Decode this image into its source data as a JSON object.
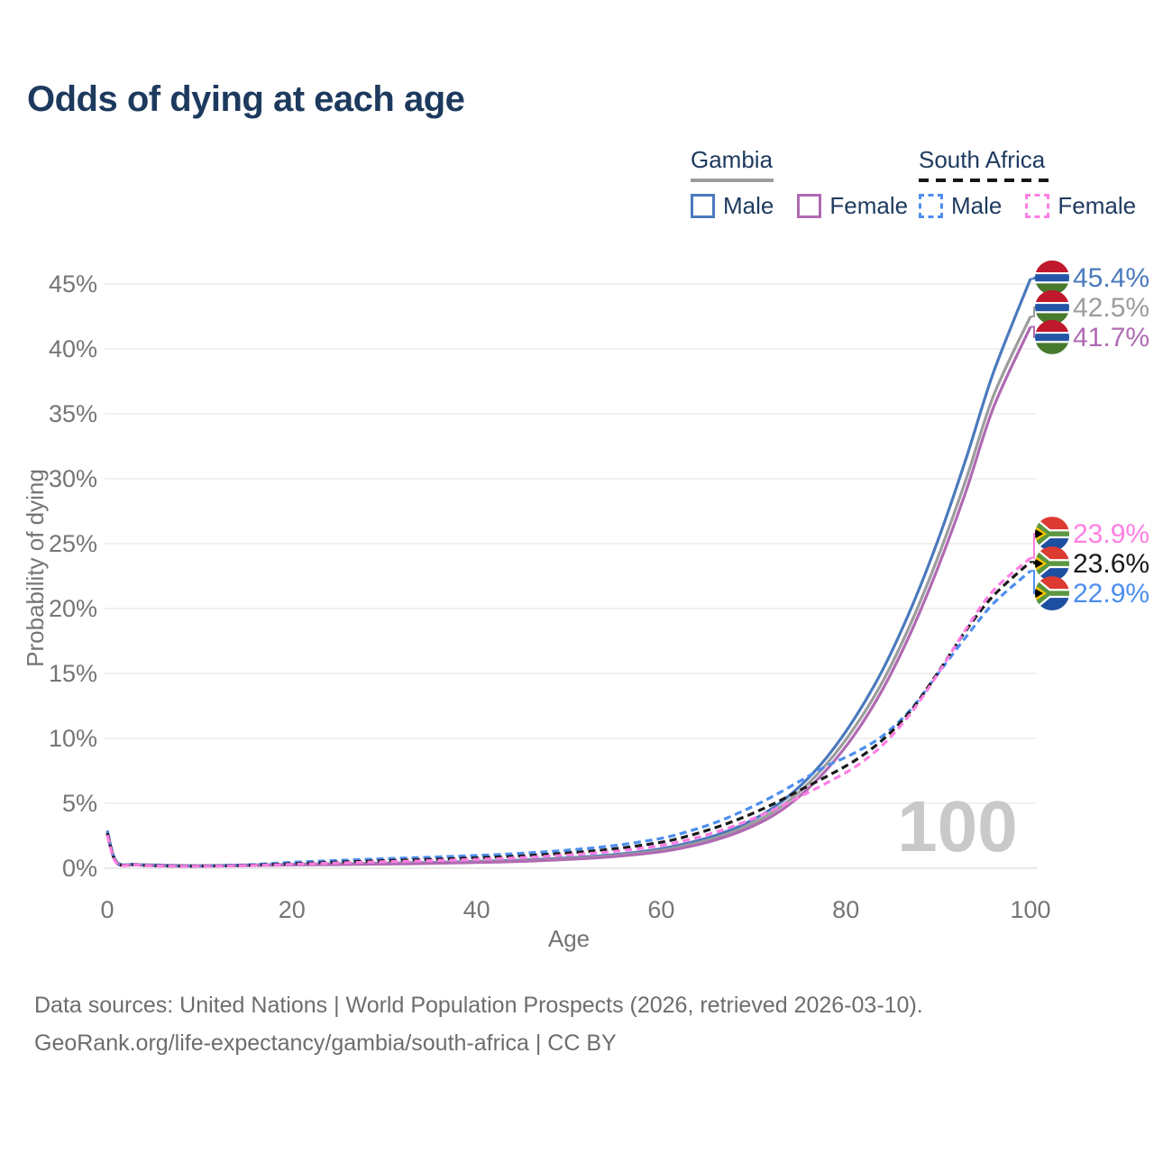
{
  "title": "Odds of dying at each age",
  "legend": {
    "groups": [
      {
        "label": "Gambia",
        "underline": {
          "style": "solid",
          "color": "#9c9c9c",
          "width": 92
        },
        "items": [
          {
            "label": "Male",
            "color": "#4a79bd",
            "line_style": "solid"
          },
          {
            "label": "Female",
            "color": "#b06ab3",
            "line_style": "solid"
          }
        ]
      },
      {
        "label": "South Africa",
        "underline": {
          "style": "dashed",
          "color": "#161616",
          "width": 144
        },
        "items": [
          {
            "label": "Male",
            "color": "#4d8ef0",
            "line_style": "dashed"
          },
          {
            "label": "Female",
            "color": "#ff7ee3",
            "line_style": "dashed"
          }
        ]
      }
    ]
  },
  "colors": {
    "title": "#1d3a5e",
    "axis_text": "#757575",
    "gridline": "#ebebeb",
    "zero_gridline": "#e0e0e0",
    "watermark": "#c9c9c9",
    "footer_text": "#6d6d6d"
  },
  "watermark": "100",
  "footer": {
    "line1": "Data sources: United Nations | World Population Prospects (2026, retrieved 2026-03-10).",
    "line2": "GeoRank.org/life-expectancy/gambia/south-africa | CC BY"
  },
  "chart_data": {
    "type": "line",
    "title": "Odds of dying at each age",
    "xlabel": "Age",
    "ylabel": "Probability of dying",
    "x_range": [
      0,
      100
    ],
    "y_range_pct": [
      0,
      45
    ],
    "x_ticks": [
      0,
      20,
      40,
      60,
      80,
      100
    ],
    "y_ticks_pct": [
      0,
      5,
      10,
      15,
      20,
      25,
      30,
      35,
      40,
      45
    ],
    "grid": true,
    "legend_position": "top-right",
    "ages": [
      0,
      1,
      3,
      5,
      10,
      15,
      20,
      25,
      30,
      35,
      40,
      45,
      50,
      55,
      60,
      63,
      66,
      69,
      72,
      75,
      78,
      81,
      84,
      87,
      90,
      93,
      96,
      100
    ],
    "series": [
      {
        "id": "gambia-male",
        "name": "Gambia Male",
        "color": "#4a79bd",
        "dash": null,
        "flag": "gambia",
        "end_value_pct": 45.4,
        "values_pct": [
          2.9,
          0.5,
          0.3,
          0.25,
          0.2,
          0.24,
          0.3,
          0.34,
          0.38,
          0.44,
          0.52,
          0.63,
          0.8,
          1.05,
          1.5,
          1.95,
          2.55,
          3.4,
          4.6,
          6.3,
          8.6,
          11.6,
          15.3,
          19.9,
          25.3,
          31.5,
          38.2,
          45.4
        ]
      },
      {
        "id": "gambia-both",
        "name": "Gambia (both sexes)",
        "color": "#9c9c9c",
        "dash": null,
        "flag": "gambia",
        "end_value_pct": 42.5,
        "values_pct": [
          2.75,
          0.46,
          0.28,
          0.22,
          0.18,
          0.22,
          0.27,
          0.31,
          0.35,
          0.4,
          0.48,
          0.58,
          0.74,
          0.97,
          1.38,
          1.8,
          2.36,
          3.15,
          4.28,
          5.9,
          8.1,
          10.9,
          14.4,
          18.8,
          24.0,
          29.9,
          36.4,
          42.5
        ]
      },
      {
        "id": "gambia-female",
        "name": "Gambia Female",
        "color": "#b06ab3",
        "dash": null,
        "flag": "gambia",
        "end_value_pct": 41.7,
        "values_pct": [
          2.6,
          0.42,
          0.26,
          0.2,
          0.17,
          0.2,
          0.25,
          0.28,
          0.32,
          0.37,
          0.44,
          0.53,
          0.68,
          0.9,
          1.27,
          1.66,
          2.2,
          2.95,
          4.0,
          5.55,
          7.65,
          10.35,
          13.8,
          18.1,
          23.2,
          29.0,
          35.5,
          41.7
        ]
      },
      {
        "id": "south-africa-male",
        "name": "South Africa Male",
        "color": "#4d8ef0",
        "dash": "8 5",
        "flag": "south-africa",
        "end_value_pct": 22.9,
        "values_pct": [
          2.8,
          0.45,
          0.3,
          0.2,
          0.17,
          0.26,
          0.45,
          0.6,
          0.73,
          0.85,
          0.98,
          1.15,
          1.4,
          1.75,
          2.3,
          2.85,
          3.55,
          4.45,
          5.5,
          6.7,
          7.9,
          8.9,
          10.2,
          12.2,
          15.0,
          17.8,
          20.4,
          22.9
        ]
      },
      {
        "id": "south-africa-both",
        "name": "South Africa (both sexes)",
        "color": "#1a1a1a",
        "dash": "8 5",
        "flag": "south-africa",
        "end_value_pct": 23.6,
        "values_pct": [
          2.7,
          0.43,
          0.28,
          0.19,
          0.16,
          0.22,
          0.35,
          0.47,
          0.58,
          0.68,
          0.8,
          0.95,
          1.18,
          1.5,
          2.0,
          2.5,
          3.15,
          3.95,
          4.9,
          6.0,
          7.1,
          8.3,
          9.9,
          12.1,
          15.1,
          18.3,
          21.0,
          23.6
        ]
      },
      {
        "id": "south-africa-female",
        "name": "South Africa Female",
        "color": "#ff7ee3",
        "dash": "8 5",
        "flag": "south-africa",
        "end_value_pct": 23.9,
        "values_pct": [
          2.55,
          0.4,
          0.27,
          0.18,
          0.15,
          0.2,
          0.3,
          0.4,
          0.5,
          0.58,
          0.68,
          0.82,
          1.02,
          1.3,
          1.75,
          2.2,
          2.8,
          3.55,
          4.45,
          5.5,
          6.6,
          7.8,
          9.5,
          11.9,
          15.0,
          18.4,
          21.4,
          23.9
        ]
      }
    ],
    "end_labels": [
      {
        "series": "gambia-male",
        "text": "45.4%",
        "color": "#4a79bd",
        "flag": "gambia"
      },
      {
        "series": "gambia-both",
        "text": "42.5%",
        "color": "#9c9c9c",
        "flag": "gambia"
      },
      {
        "series": "gambia-female",
        "text": "41.7%",
        "color": "#b06ab3",
        "flag": "gambia"
      },
      {
        "series": "south-africa-female",
        "text": "23.9%",
        "color": "#ff7ee3",
        "flag": "south-africa"
      },
      {
        "series": "south-africa-both",
        "text": "23.6%",
        "color": "#1a1a1a",
        "flag": "south-africa"
      },
      {
        "series": "south-africa-male",
        "text": "22.9%",
        "color": "#4d8ef0",
        "flag": "south-africa"
      }
    ],
    "flag_colors": {
      "gambia": {
        "red": "#c0182c",
        "white": "#ffffff",
        "blue": "#2456a8",
        "green": "#487a2e"
      },
      "south_africa": {
        "red": "#dd3a32",
        "blue": "#1d4fa1",
        "green": "#5b9741",
        "gold": "#f5c400",
        "black": "#000000",
        "white": "#ffffff"
      }
    }
  }
}
